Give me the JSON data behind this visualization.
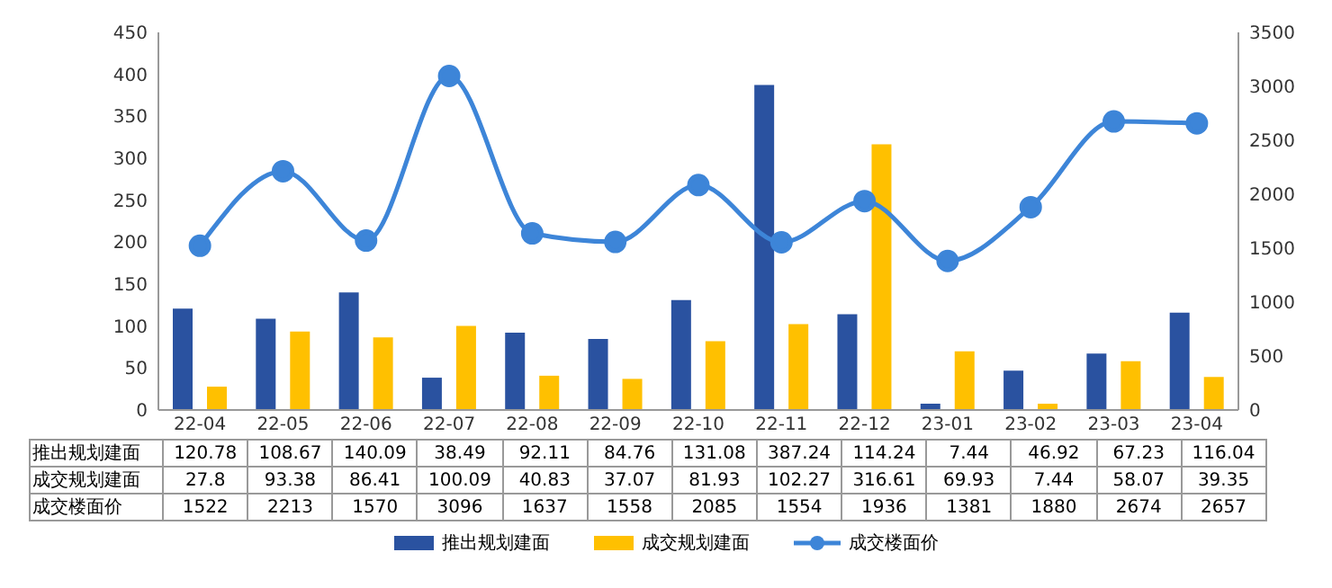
{
  "chart_data": {
    "type": "bar",
    "categories": [
      "22-04",
      "22-05",
      "22-06",
      "22-07",
      "22-08",
      "22-09",
      "22-10",
      "22-11",
      "22-12",
      "23-01",
      "23-02",
      "23-03",
      "23-04"
    ],
    "series": [
      {
        "name": "推出规划建面",
        "color": "#2a52a0",
        "values": [
          120.78,
          108.67,
          140.09,
          38.49,
          92.11,
          84.76,
          131.08,
          387.24,
          114.24,
          7.44,
          46.92,
          67.23,
          116.04
        ]
      },
      {
        "name": "成交规划建面",
        "color": "#ffc000",
        "values": [
          27.8,
          93.38,
          86.41,
          100.09,
          40.83,
          37.07,
          81.93,
          102.27,
          316.61,
          69.93,
          7.44,
          58.07,
          39.35
        ]
      },
      {
        "name": "成交楼面价",
        "type": "line",
        "axis": "y2",
        "color": "#3d85d8",
        "marker": "circle",
        "values": [
          1522,
          2213,
          1570,
          3096,
          1637,
          1558,
          2085,
          1554,
          1936,
          1381,
          1880,
          2674,
          2657
        ]
      }
    ],
    "ylim": [
      0,
      450
    ],
    "yticks": [
      0,
      50,
      100,
      150,
      200,
      250,
      300,
      350,
      400,
      450
    ],
    "y2lim": [
      0,
      3500
    ],
    "y2ticks": [
      0,
      500,
      1000,
      1500,
      2000,
      2500,
      3000,
      3500
    ],
    "legend": "bottom",
    "data_labels": true
  }
}
